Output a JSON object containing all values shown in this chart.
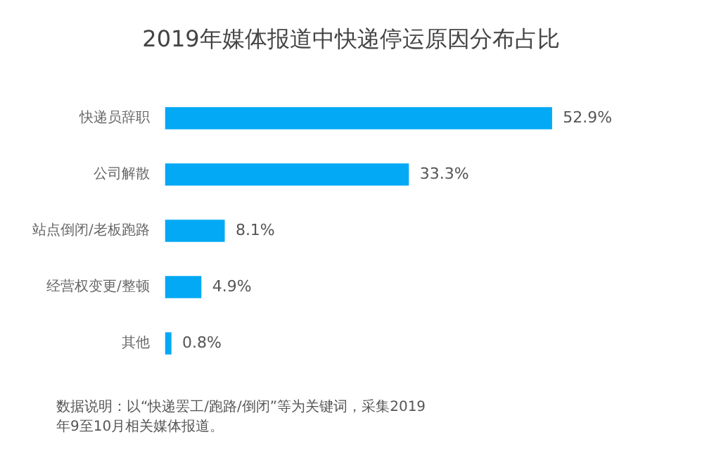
{
  "chart_data": {
    "type": "bar",
    "orientation": "horizontal",
    "title": "2019年媒体报道中快递停运原因分布占比",
    "categories": [
      "快递员辞职",
      "公司解散",
      "站点倒闭/老板跑路",
      "经营权变更/整顿",
      "其他"
    ],
    "values": [
      52.9,
      33.3,
      8.1,
      4.9,
      0.8
    ],
    "value_labels": [
      "52.9%",
      "33.3%",
      "8.1%",
      "4.9%",
      "0.8%"
    ],
    "color": "#03a9f4",
    "legend": false,
    "tick_labels": "y",
    "annotations": [
      "数据说明：以“快递罢工/跑路/倒闭”等为关键词，采集2019年9至10月相关媒体报道。"
    ]
  }
}
